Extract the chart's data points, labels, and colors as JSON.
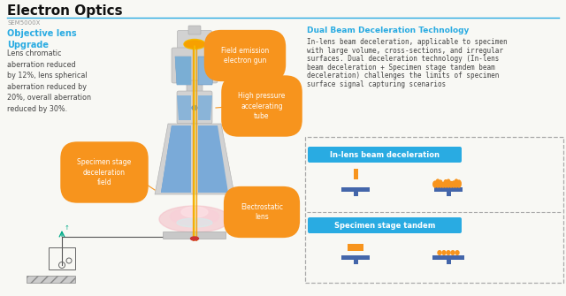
{
  "title": "Electron Optics",
  "subtitle": "SEM5000X",
  "bg_color": "#f5f5f0",
  "title_line_color": "#29abe2",
  "left_heading_color": "#29abe2",
  "left_heading": "Objective lens\nUpgrade",
  "left_body": "Lens chromatic\naberration reduced\nby 12%, lens spherical\naberration reduced by\n20%, overall aberration\nreduced by 30%.",
  "left_body_color": "#444444",
  "orange_label_bg": "#f7941d",
  "right_title": "Dual Beam Deceleration Technology",
  "right_title_color": "#29abe2",
  "right_body_line1": "In-lens beam deceleration, applicable to specimen",
  "right_body_line2": "with large volume, cross-sections, and irregular",
  "right_body_line3": "surfaces. Dual deceleration technology (In-lens",
  "right_body_line4": "beam deceleration + Specimen stage tandem beam",
  "right_body_line5": "deceleration) challenges the limits of specimen",
  "right_body_line6": "surface signal capturing scenarios",
  "right_body_color": "#444444",
  "box1_label": "In-lens beam deceleration",
  "box2_label": "Specimen stage tandem",
  "box_label_bg": "#29abe2",
  "box_label_text": "#ffffff",
  "cross_color": "#4466aa",
  "sample_color_orange": "#f7941d",
  "dashed_box_color": "#aaaaaa",
  "microscope_gray_light": "#d8d8d8",
  "microscope_gray_mid": "#c0c0c0",
  "microscope_blue_light": "#8ab0d8",
  "microscope_blue_mid": "#5588bb",
  "beam_orange": "#f7941d",
  "beam_yellow": "#f5c200",
  "pink_glow": "#f0c0c8",
  "teal_color": "#00aa88"
}
